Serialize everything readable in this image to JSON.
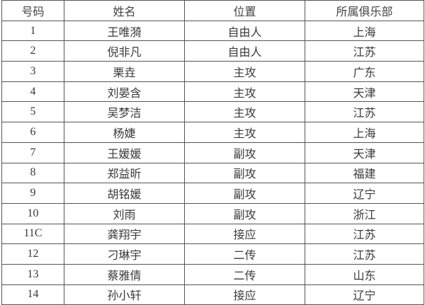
{
  "table": {
    "headers": [
      "号码",
      "姓名",
      "位置",
      "所属俱乐部"
    ],
    "rows": [
      [
        "1",
        "王唯漪",
        "自由人",
        "上海"
      ],
      [
        "2",
        "倪非凡",
        "自由人",
        "江苏"
      ],
      [
        "3",
        "栗垚",
        "主攻",
        "广东"
      ],
      [
        "4",
        "刘晏含",
        "主攻",
        "天津"
      ],
      [
        "5",
        "吴梦洁",
        "主攻",
        "江苏"
      ],
      [
        "6",
        "杨婕",
        "主攻",
        "上海"
      ],
      [
        "7",
        "王媛媛",
        "副攻",
        "天津"
      ],
      [
        "8",
        "郑益昕",
        "副攻",
        "福建"
      ],
      [
        "9",
        "胡铭媛",
        "副攻",
        "辽宁"
      ],
      [
        "10",
        "刘雨",
        "副攻",
        "浙江"
      ],
      [
        "11C",
        "龚翔宇",
        "接应",
        "江苏"
      ],
      [
        "12",
        "刁琳宇",
        "二传",
        "江苏"
      ],
      [
        "13",
        "蔡雅倩",
        "二传",
        "山东"
      ],
      [
        "14",
        "孙小轩",
        "接应",
        "辽宁"
      ]
    ]
  }
}
